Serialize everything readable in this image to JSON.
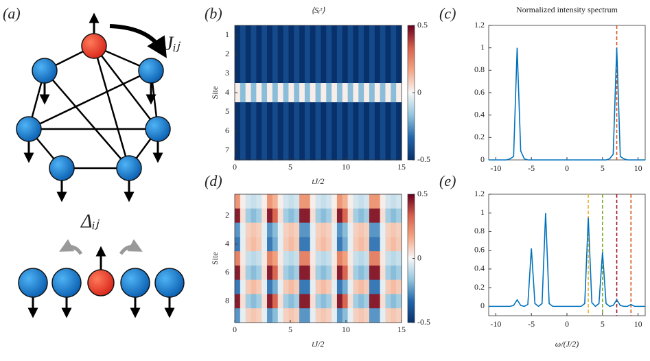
{
  "diagram": {
    "panel_label": "(a)",
    "coupling_label": "Jᵢⱼ",
    "detuning_label": "Δᵢⱼ"
  },
  "chart_data": [
    {
      "type": "heatmap",
      "panel_label": "(b)",
      "title": "⟨Sᵢᶻ⟩",
      "x_label": "tJ/2",
      "y_label": "Site",
      "xlim": [
        0,
        15
      ],
      "xticks": [
        0,
        5,
        10,
        15
      ],
      "ylim": [
        0.5,
        7.5
      ],
      "yticks": [
        1,
        2,
        3,
        4,
        5,
        6,
        7
      ],
      "clim": [
        -0.5,
        0.5
      ],
      "cticks": [
        0.5,
        0,
        -0.5
      ],
      "colormap": [
        "#08306b",
        "#2166ac",
        "#92c5de",
        "#f7f7f7",
        "#f4a582",
        "#d6604d",
        "#67001f"
      ],
      "values": [
        [
          -0.5,
          -0.42,
          -0.5,
          -0.42,
          -0.5,
          -0.42,
          -0.5,
          -0.42,
          -0.5,
          -0.42,
          -0.5,
          -0.42,
          -0.5,
          -0.42,
          -0.5,
          -0.42,
          -0.5,
          -0.42,
          -0.5,
          -0.42,
          -0.5,
          -0.42,
          -0.5,
          -0.42,
          -0.5,
          -0.42,
          -0.5,
          -0.42,
          -0.5,
          -0.42,
          -0.5
        ],
        [
          -0.5,
          -0.42,
          -0.5,
          -0.42,
          -0.5,
          -0.42,
          -0.5,
          -0.42,
          -0.5,
          -0.42,
          -0.5,
          -0.42,
          -0.5,
          -0.42,
          -0.5,
          -0.42,
          -0.5,
          -0.42,
          -0.5,
          -0.42,
          -0.5,
          -0.42,
          -0.5,
          -0.42,
          -0.5,
          -0.42,
          -0.5,
          -0.42,
          -0.5,
          -0.42,
          -0.5
        ],
        [
          -0.5,
          -0.42,
          -0.5,
          -0.42,
          -0.5,
          -0.42,
          -0.5,
          -0.42,
          -0.5,
          -0.42,
          -0.5,
          -0.42,
          -0.5,
          -0.42,
          -0.5,
          -0.42,
          -0.5,
          -0.42,
          -0.5,
          -0.42,
          -0.5,
          -0.42,
          -0.5,
          -0.42,
          -0.5,
          -0.42,
          -0.5,
          -0.42,
          -0.5,
          -0.42,
          -0.5
        ],
        [
          0.02,
          -0.18,
          0.02,
          -0.18,
          0.02,
          -0.18,
          0.02,
          -0.18,
          0.02,
          -0.18,
          0.02,
          -0.18,
          0.02,
          -0.18,
          0.02,
          -0.18,
          0.02,
          -0.18,
          0.02,
          -0.18,
          0.02,
          -0.18,
          0.02,
          -0.18,
          0.02,
          -0.18,
          0.02,
          -0.18,
          0.02,
          -0.18,
          0.02
        ],
        [
          -0.5,
          -0.42,
          -0.5,
          -0.42,
          -0.5,
          -0.42,
          -0.5,
          -0.42,
          -0.5,
          -0.42,
          -0.5,
          -0.42,
          -0.5,
          -0.42,
          -0.5,
          -0.42,
          -0.5,
          -0.42,
          -0.5,
          -0.42,
          -0.5,
          -0.42,
          -0.5,
          -0.42,
          -0.5,
          -0.42,
          -0.5,
          -0.42,
          -0.5,
          -0.42,
          -0.5
        ],
        [
          -0.5,
          -0.42,
          -0.5,
          -0.42,
          -0.5,
          -0.42,
          -0.5,
          -0.42,
          -0.5,
          -0.42,
          -0.5,
          -0.42,
          -0.5,
          -0.42,
          -0.5,
          -0.42,
          -0.5,
          -0.42,
          -0.5,
          -0.42,
          -0.5,
          -0.42,
          -0.5,
          -0.42,
          -0.5,
          -0.42,
          -0.5,
          -0.42,
          -0.5,
          -0.42,
          -0.5
        ],
        [
          -0.5,
          -0.42,
          -0.5,
          -0.42,
          -0.5,
          -0.42,
          -0.5,
          -0.42,
          -0.5,
          -0.42,
          -0.5,
          -0.42,
          -0.5,
          -0.42,
          -0.5,
          -0.42,
          -0.5,
          -0.42,
          -0.5,
          -0.42,
          -0.5,
          -0.42,
          -0.5,
          -0.42,
          -0.5,
          -0.42,
          -0.5,
          -0.42,
          -0.5,
          -0.42,
          -0.5
        ]
      ]
    },
    {
      "type": "heatmap",
      "panel_label": "(d)",
      "x_label": "tJ/2",
      "y_label": "Site",
      "xlim": [
        0,
        15
      ],
      "xticks": [
        0,
        5,
        10,
        15
      ],
      "ylim": [
        0.5,
        9.5
      ],
      "yticks": [
        2,
        4,
        6,
        8
      ],
      "clim": [
        -0.5,
        0.5
      ],
      "cticks": [
        0.5,
        0,
        -0.5
      ],
      "colormap": [
        "#08306b",
        "#2166ac",
        "#92c5de",
        "#f7f7f7",
        "#f4a582",
        "#d6604d",
        "#67001f"
      ],
      "values": [
        [
          0.2,
          0.02,
          -0.06,
          -0.08,
          -0.06,
          0.02,
          0.2,
          0.14,
          0.02,
          -0.06,
          -0.08,
          -0.06,
          0.2,
          0.2,
          0.02,
          -0.06,
          -0.08,
          -0.06,
          0.02,
          0.2,
          0.14,
          0.02,
          -0.06,
          -0.08,
          -0.06,
          0.2,
          0.2,
          0.02,
          -0.06,
          -0.08,
          -0.06
        ],
        [
          0.45,
          0.05,
          -0.14,
          -0.18,
          -0.14,
          0.05,
          0.45,
          0.32,
          0.05,
          -0.14,
          -0.18,
          -0.14,
          0.45,
          0.45,
          0.05,
          -0.14,
          -0.18,
          -0.14,
          0.05,
          0.45,
          0.32,
          0.05,
          -0.14,
          -0.18,
          -0.14,
          0.45,
          0.45,
          0.05,
          -0.14,
          -0.18,
          -0.14
        ],
        [
          -0.25,
          -0.03,
          0.08,
          0.1,
          0.08,
          -0.03,
          -0.25,
          -0.18,
          -0.03,
          0.08,
          0.1,
          0.08,
          -0.25,
          -0.25,
          -0.03,
          0.08,
          0.1,
          0.08,
          -0.03,
          -0.25,
          -0.18,
          -0.03,
          0.08,
          0.1,
          0.08,
          -0.25,
          -0.25,
          -0.03,
          0.08,
          0.1,
          0.08
        ],
        [
          -0.3,
          -0.03,
          0.09,
          0.12,
          0.09,
          -0.03,
          -0.3,
          -0.21,
          -0.03,
          0.09,
          0.12,
          0.09,
          -0.3,
          -0.3,
          -0.03,
          0.09,
          0.12,
          0.09,
          -0.03,
          -0.3,
          -0.21,
          -0.03,
          0.09,
          0.12,
          0.09,
          -0.3,
          -0.3,
          -0.03,
          0.09,
          0.12,
          0.09
        ],
        [
          0.25,
          0.03,
          -0.08,
          -0.1,
          -0.08,
          0.03,
          0.25,
          0.18,
          0.03,
          -0.08,
          -0.1,
          -0.08,
          0.25,
          0.25,
          0.03,
          -0.08,
          -0.1,
          -0.08,
          0.03,
          0.25,
          0.18,
          0.03,
          -0.08,
          -0.1,
          -0.08,
          0.25,
          0.25,
          0.03,
          -0.08,
          -0.1,
          -0.08
        ],
        [
          0.45,
          0.05,
          -0.14,
          -0.18,
          -0.14,
          0.05,
          0.45,
          0.32,
          0.05,
          -0.14,
          -0.18,
          -0.14,
          0.45,
          0.45,
          0.05,
          -0.14,
          -0.18,
          -0.14,
          0.05,
          0.45,
          0.32,
          0.05,
          -0.14,
          -0.18,
          -0.14,
          0.45,
          0.45,
          0.05,
          -0.14,
          -0.18,
          -0.14
        ],
        [
          -0.3,
          -0.03,
          0.09,
          0.12,
          0.09,
          -0.03,
          -0.3,
          -0.21,
          -0.03,
          0.09,
          0.12,
          0.09,
          -0.3,
          -0.3,
          -0.03,
          0.09,
          0.12,
          0.09,
          -0.03,
          -0.3,
          -0.21,
          -0.03,
          0.09,
          0.12,
          0.09,
          -0.3,
          -0.3,
          -0.03,
          0.09,
          0.12,
          0.09
        ],
        [
          0.45,
          0.05,
          -0.14,
          -0.18,
          -0.14,
          0.05,
          0.45,
          0.32,
          0.05,
          -0.14,
          -0.18,
          -0.14,
          0.45,
          0.45,
          0.05,
          -0.14,
          -0.18,
          -0.14,
          0.05,
          0.45,
          0.32,
          0.05,
          -0.14,
          -0.18,
          -0.14,
          0.45,
          0.45,
          0.05,
          -0.14,
          -0.18,
          -0.14
        ],
        [
          -0.25,
          -0.03,
          0.08,
          0.1,
          0.08,
          -0.03,
          -0.25,
          -0.18,
          -0.03,
          0.08,
          0.1,
          0.08,
          -0.25,
          -0.25,
          -0.03,
          0.08,
          0.1,
          0.08,
          -0.03,
          -0.25,
          -0.18,
          -0.03,
          0.08,
          0.1,
          0.08,
          -0.25,
          -0.25,
          -0.03,
          0.08,
          0.1,
          0.08
        ]
      ]
    },
    {
      "type": "line",
      "panel_label": "(c)",
      "title": "Normalized intensity spectrum",
      "xlim": [
        -11,
        11
      ],
      "xticks": [
        -10,
        -5,
        0,
        5,
        10
      ],
      "ylim": [
        0,
        1.2
      ],
      "yticks": [
        0,
        0.2,
        0.4,
        0.6,
        0.8,
        1,
        1.2
      ],
      "x": [
        -11,
        -10.5,
        -10,
        -9.5,
        -9,
        -8.5,
        -8,
        -7.5,
        -7,
        -6.5,
        -6,
        -5.5,
        -5,
        -4.5,
        -4,
        -3.5,
        -3,
        -2.5,
        -2,
        -1.5,
        -1,
        -0.5,
        0,
        0.5,
        1,
        1.5,
        2,
        2.5,
        3,
        3.5,
        4,
        4.5,
        5,
        5.5,
        6,
        6.5,
        7,
        7.5,
        8,
        8.5,
        9,
        9.5,
        10,
        10.5,
        11
      ],
      "series": [
        {
          "color": "#0072bd",
          "values": [
            0,
            0,
            0,
            0,
            0,
            0,
            0.01,
            0.03,
            1,
            0.08,
            0.01,
            0,
            0,
            0,
            0,
            0,
            0,
            0,
            0,
            0,
            0,
            0,
            0,
            0,
            0,
            0,
            0,
            0,
            0,
            0,
            0,
            0,
            0,
            0,
            0.01,
            0.05,
            1,
            0.03,
            0.01,
            0,
            0,
            0,
            0,
            0,
            0
          ]
        }
      ],
      "vlines": [
        {
          "x": 7,
          "color": "#d95319"
        }
      ]
    },
    {
      "type": "line",
      "panel_label": "(e)",
      "x_label": "ω/(J/2)",
      "xlim": [
        -11,
        11
      ],
      "xticks": [
        -10,
        -5,
        0,
        5,
        10
      ],
      "ylim": [
        -0.1,
        1.2
      ],
      "yticks": [
        0,
        0.2,
        0.4,
        0.6,
        0.8,
        1,
        1.2
      ],
      "x": [
        -11,
        -10.5,
        -10,
        -9.5,
        -9,
        -8.5,
        -8,
        -7.5,
        -7,
        -6.5,
        -6,
        -5.5,
        -5,
        -4.5,
        -4,
        -3.5,
        -3,
        -2.5,
        -2,
        -1.5,
        -1,
        -0.5,
        0,
        0.5,
        1,
        1.5,
        2,
        2.5,
        3,
        3.5,
        4,
        4.5,
        5,
        5.5,
        6,
        6.5,
        7,
        7.5,
        8,
        8.5,
        9,
        9.5,
        10,
        10.5,
        11
      ],
      "series": [
        {
          "color": "#0072bd",
          "values": [
            0,
            0,
            0,
            0,
            0,
            0,
            0,
            0.01,
            0.07,
            0.01,
            0,
            0.02,
            0.62,
            0.03,
            0,
            0.03,
            1,
            0.03,
            0,
            0,
            0,
            0,
            0,
            0,
            0,
            0,
            0,
            0.03,
            0.95,
            0.04,
            0,
            0.03,
            0.58,
            0.03,
            0,
            0.01,
            0.07,
            0.01,
            0,
            0,
            0.02,
            0,
            0,
            0,
            0
          ]
        }
      ],
      "vlines": [
        {
          "x": 3,
          "color": "#edb120"
        },
        {
          "x": 5,
          "color": "#77ac30"
        },
        {
          "x": 7,
          "color": "#a2142f"
        },
        {
          "x": 9,
          "color": "#d95319"
        }
      ]
    }
  ]
}
